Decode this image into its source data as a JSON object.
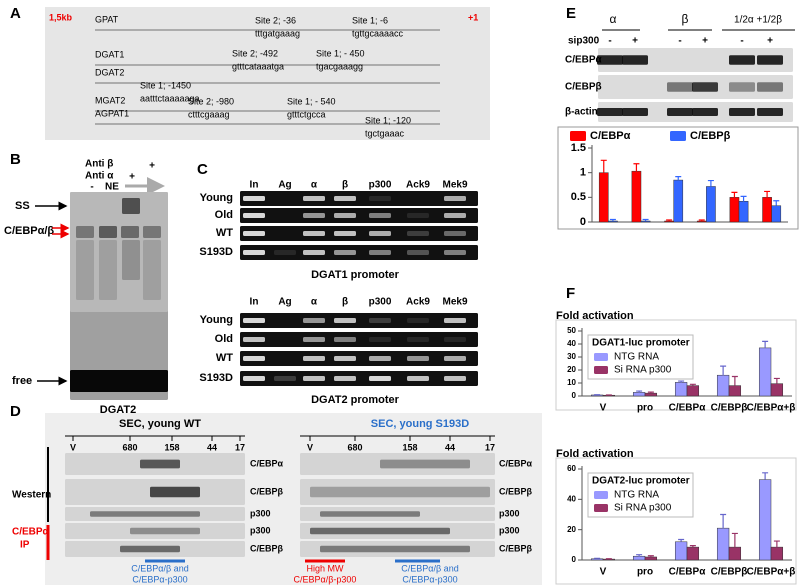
{
  "panel_a": {
    "label": "A",
    "scale": "1,5kb",
    "tss": "+1",
    "genes": [
      {
        "name": "GPAT",
        "sites": [
          {
            "site": "Site 2; -36",
            "seq": "tttgatgaaag"
          },
          {
            "site": "Site 1; -6",
            "seq": "tgttgcaaaacc"
          }
        ]
      },
      {
        "name": "DGAT1",
        "sites": [
          {
            "site": "Site 2; -492",
            "seq": "gtttcataaatga"
          },
          {
            "site": "Site 1; - 450",
            "seq": "tgacgaaagg"
          }
        ]
      },
      {
        "name": "DGAT2",
        "sites": [
          {
            "site": "Site 1; -1450",
            "seq": "aatttctaaaaaga"
          }
        ]
      },
      {
        "name": "MGAT2",
        "sites": [
          {
            "site": "Site 2; -980",
            "seq": "ctttcgaaag"
          },
          {
            "site": "Site 1; - 540",
            "seq": "gtttctgcca"
          }
        ]
      },
      {
        "name": "AGPAT1",
        "sites": [
          {
            "site": "Site 1; -120",
            "seq": "tgctgaaac"
          }
        ]
      }
    ]
  },
  "panel_b": {
    "label": "B",
    "anti_beta": "Anti β",
    "anti_alpha": "Anti α",
    "lanes": [
      "-",
      "NE",
      "+",
      "+"
    ],
    "ss": "SS",
    "complex": "C/EBPα/β",
    "free": "free",
    "caption": "DGAT2"
  },
  "panel_c": {
    "label": "C",
    "lanes": [
      "In",
      "Ag",
      "α",
      "β",
      "p300",
      "Ack9",
      "Mek9"
    ],
    "rows": [
      "Young",
      "Old",
      "WT",
      "S193D"
    ],
    "captions": [
      "DGAT1 promoter",
      "DGAT2 promoter"
    ]
  },
  "panel_d": {
    "label": "D",
    "left_title": "SEC, young WT",
    "right_title": "SEC,  young S193D",
    "markers": [
      "V",
      "680",
      "158",
      "44",
      "17"
    ],
    "rows": [
      "C/EBPα",
      "C/EBPβ",
      "p300",
      "p300",
      "C/EBPβ"
    ],
    "western": "Western",
    "ip": [
      "C/EBPα",
      "IP"
    ],
    "left_note": [
      "C/EBPα/β and",
      "C/EBPα-p300"
    ],
    "right_notes": [
      [
        "High MW",
        "C/EBPα/β-p300"
      ],
      [
        "C/EBPα/β and",
        "C/EBPα-p300"
      ]
    ]
  },
  "panel_e": {
    "label": "E",
    "groups": [
      "α",
      "β",
      "1/2α +1/2β"
    ],
    "sip300": "sip300",
    "signs": [
      "-",
      "+",
      "-",
      "+",
      "-",
      "+"
    ],
    "rows": [
      "C/EBPα",
      "C/EBPβ",
      "β-actin"
    ]
  },
  "panel_f": {
    "label": "F"
  },
  "chart_data": [
    {
      "type": "bar",
      "categories": [
        null,
        null,
        null,
        null,
        null,
        null
      ],
      "legend": "top",
      "series": [
        {
          "name": "C/EBPα",
          "color": "#ff0000",
          "values": [
            1.0,
            1.03,
            0.02,
            0.02,
            0.5,
            0.5
          ],
          "errors": [
            0.25,
            0.15,
            0.02,
            0.02,
            0.1,
            0.12
          ]
        },
        {
          "name": "C/EBPβ",
          "color": "#3366ff",
          "values": [
            0.02,
            0.02,
            0.85,
            0.72,
            0.42,
            0.33
          ],
          "errors": [
            0.03,
            0.03,
            0.07,
            0.12,
            0.1,
            0.1
          ]
        }
      ],
      "ylim": [
        0,
        1.5
      ],
      "yticks": [
        0,
        0.5,
        1,
        1.5
      ]
    },
    {
      "type": "bar",
      "title": "Fold activation",
      "legend_title": "DGAT1-luc promoter",
      "legend": "upper left",
      "categories": [
        "V",
        "pro",
        "C/EBPα",
        "C/EBPβ",
        "C/EBPα+β"
      ],
      "series": [
        {
          "name": "NTG RNA",
          "color": "#9999ff",
          "values": [
            0.8,
            2.8,
            10.5,
            16,
            37
          ],
          "errors": [
            0.2,
            1,
            1,
            7,
            5
          ]
        },
        {
          "name": "Si RNA p300",
          "color": "#993366",
          "values": [
            0.6,
            2.2,
            8,
            8,
            9.5
          ],
          "errors": [
            0.2,
            0.8,
            1,
            7,
            4
          ]
        }
      ],
      "ylim": [
        0,
        50
      ],
      "yticks": [
        0,
        10,
        20,
        30,
        40,
        50
      ]
    },
    {
      "type": "bar",
      "title": "Fold activation",
      "legend_title": "DGAT2-luc promoter",
      "legend": "upper left",
      "categories": [
        "V",
        "pro",
        "C/EBPα",
        "C/EBPβ",
        "C/EBPα+β"
      ],
      "series": [
        {
          "name": "NTG RNA",
          "color": "#9999ff",
          "values": [
            0.8,
            2.5,
            12,
            21,
            53
          ],
          "errors": [
            0.3,
            1,
            1.5,
            9,
            4.5
          ]
        },
        {
          "name": "Si RNA p300",
          "color": "#993366",
          "values": [
            0.6,
            2,
            8.5,
            8.5,
            8.5
          ],
          "errors": [
            0.2,
            0.8,
            1,
            9,
            4
          ]
        }
      ],
      "ylim": [
        0,
        60
      ],
      "yticks": [
        0,
        20,
        40,
        60
      ]
    }
  ]
}
